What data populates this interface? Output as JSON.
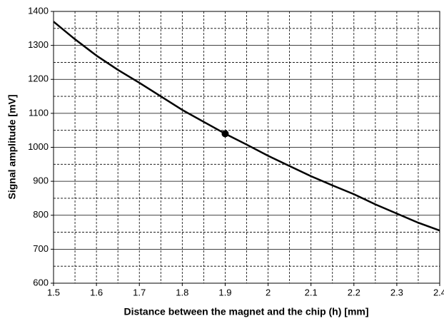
{
  "chart_data": {
    "type": "line",
    "xlabel": "Distance between the magnet and the chip (h) [mm]",
    "ylabel": "Signal amplitude [mV]",
    "x": [
      1.5,
      1.55,
      1.6,
      1.65,
      1.7,
      1.75,
      1.8,
      1.85,
      1.9,
      1.95,
      2.0,
      2.05,
      2.1,
      2.15,
      2.2,
      2.25,
      2.3,
      2.35,
      2.4
    ],
    "series": [
      {
        "color": "#000000",
        "values": [
          1370,
          1318,
          1270,
          1228,
          1190,
          1150,
          1110,
          1075,
          1040,
          1008,
          975,
          945,
          915,
          888,
          862,
          832,
          805,
          778,
          755
        ]
      }
    ],
    "marker": {
      "x": 1.9,
      "y": 1040
    },
    "xlim": [
      1.5,
      2.4
    ],
    "xticks": [
      1.5,
      1.6,
      1.7,
      1.8,
      1.9,
      2,
      2.1,
      2.2,
      2.3,
      2.4
    ],
    "ylim": [
      600,
      1400
    ],
    "yticks": [
      600,
      700,
      800,
      900,
      1000,
      1100,
      1200,
      1300,
      1400
    ],
    "grid": true
  }
}
